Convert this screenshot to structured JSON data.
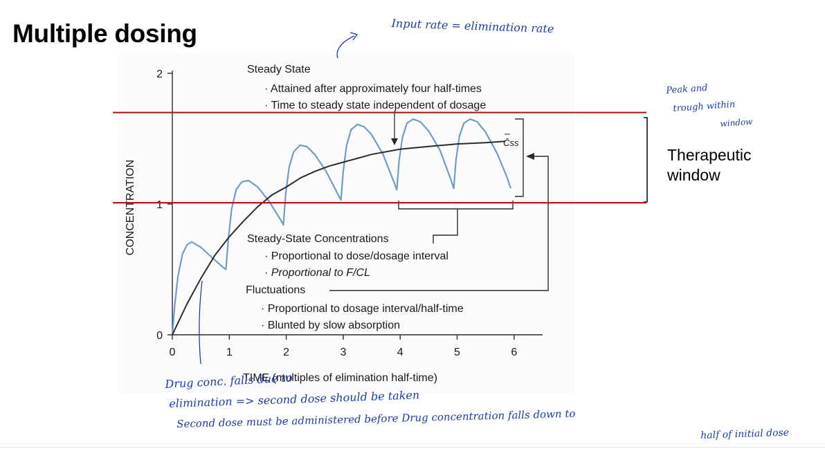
{
  "slide": {
    "title": "Multiple dosing",
    "window_label": [
      "Therapeutic",
      "window"
    ],
    "handwritten": {
      "top": "Input rate = elimination rate",
      "right": [
        "Peak and",
        "trough within",
        "window"
      ],
      "bottom": [
        "Drug conc. falls due to",
        "elimination => second dose should be taken",
        "Second dose must be administered before Drug concentration falls down to",
        "half of initial dose"
      ]
    }
  },
  "chart_data": {
    "type": "line",
    "xlabel": "TIME (multiples of elimination half-time)",
    "ylabel": "CONCENTRATION",
    "xlim": [
      0,
      6.5
    ],
    "ylim": [
      0,
      2
    ],
    "x_ticks": [
      "0",
      "1",
      "2",
      "3",
      "4",
      "5",
      "6"
    ],
    "y_ticks": [
      "0",
      "1",
      "2"
    ],
    "css_label": "C̄ss",
    "series": [
      {
        "type": "fluctuating",
        "color": "#6f9cc6",
        "values": [
          {
            "x": 0.0,
            "y": 0.0
          },
          {
            "x": 0.04,
            "y": 0.22
          },
          {
            "x": 0.1,
            "y": 0.45
          },
          {
            "x": 0.18,
            "y": 0.62
          },
          {
            "x": 0.26,
            "y": 0.69
          },
          {
            "x": 0.34,
            "y": 0.71
          },
          {
            "x": 0.5,
            "y": 0.67
          },
          {
            "x": 0.7,
            "y": 0.59
          },
          {
            "x": 0.88,
            "y": 0.52
          },
          {
            "x": 0.94,
            "y": 0.5
          },
          {
            "x": 0.98,
            "y": 0.72
          },
          {
            "x": 1.04,
            "y": 0.96
          },
          {
            "x": 1.12,
            "y": 1.11
          },
          {
            "x": 1.22,
            "y": 1.17
          },
          {
            "x": 1.34,
            "y": 1.18
          },
          {
            "x": 1.5,
            "y": 1.13
          },
          {
            "x": 1.7,
            "y": 1.02
          },
          {
            "x": 1.9,
            "y": 0.88
          },
          {
            "x": 1.95,
            "y": 0.84
          },
          {
            "x": 1.99,
            "y": 1.08
          },
          {
            "x": 2.05,
            "y": 1.28
          },
          {
            "x": 2.13,
            "y": 1.4
          },
          {
            "x": 2.24,
            "y": 1.45
          },
          {
            "x": 2.36,
            "y": 1.44
          },
          {
            "x": 2.5,
            "y": 1.38
          },
          {
            "x": 2.7,
            "y": 1.25
          },
          {
            "x": 2.9,
            "y": 1.08
          },
          {
            "x": 2.96,
            "y": 1.03
          },
          {
            "x": 3.0,
            "y": 1.25
          },
          {
            "x": 3.06,
            "y": 1.45
          },
          {
            "x": 3.14,
            "y": 1.57
          },
          {
            "x": 3.25,
            "y": 1.61
          },
          {
            "x": 3.37,
            "y": 1.59
          },
          {
            "x": 3.5,
            "y": 1.53
          },
          {
            "x": 3.7,
            "y": 1.38
          },
          {
            "x": 3.88,
            "y": 1.18
          },
          {
            "x": 3.94,
            "y": 1.11
          },
          {
            "x": 3.98,
            "y": 1.33
          },
          {
            "x": 4.04,
            "y": 1.51
          },
          {
            "x": 4.12,
            "y": 1.62
          },
          {
            "x": 4.23,
            "y": 1.65
          },
          {
            "x": 4.35,
            "y": 1.63
          },
          {
            "x": 4.5,
            "y": 1.56
          },
          {
            "x": 4.7,
            "y": 1.41
          },
          {
            "x": 4.88,
            "y": 1.2
          },
          {
            "x": 4.94,
            "y": 1.12
          },
          {
            "x": 4.98,
            "y": 1.34
          },
          {
            "x": 5.04,
            "y": 1.52
          },
          {
            "x": 5.12,
            "y": 1.62
          },
          {
            "x": 5.23,
            "y": 1.65
          },
          {
            "x": 5.35,
            "y": 1.63
          },
          {
            "x": 5.5,
            "y": 1.55
          },
          {
            "x": 5.7,
            "y": 1.39
          },
          {
            "x": 5.88,
            "y": 1.2
          },
          {
            "x": 5.94,
            "y": 1.12
          }
        ]
      },
      {
        "type": "average",
        "color": "#2b2b2b",
        "values": [
          {
            "x": 0.0,
            "y": 0.0
          },
          {
            "x": 0.25,
            "y": 0.23
          },
          {
            "x": 0.5,
            "y": 0.43
          },
          {
            "x": 0.75,
            "y": 0.61
          },
          {
            "x": 1.0,
            "y": 0.75
          },
          {
            "x": 1.25,
            "y": 0.87
          },
          {
            "x": 1.5,
            "y": 0.98
          },
          {
            "x": 1.75,
            "y": 1.07
          },
          {
            "x": 2.0,
            "y": 1.13
          },
          {
            "x": 2.25,
            "y": 1.2
          },
          {
            "x": 2.5,
            "y": 1.25
          },
          {
            "x": 2.75,
            "y": 1.29
          },
          {
            "x": 3.0,
            "y": 1.32
          },
          {
            "x": 3.5,
            "y": 1.38
          },
          {
            "x": 4.0,
            "y": 1.42
          },
          {
            "x": 4.5,
            "y": 1.44
          },
          {
            "x": 5.0,
            "y": 1.46
          },
          {
            "x": 5.5,
            "y": 1.47
          },
          {
            "x": 5.85,
            "y": 1.48
          }
        ]
      }
    ],
    "annotations": {
      "steady_state": {
        "heading": "Steady State",
        "items": [
          "· Attained after approximately four half-times",
          "· Time to steady state independent of dosage"
        ]
      },
      "ss_concentrations": {
        "heading": "Steady-State Concentrations",
        "items": [
          "· Proportional to dose/dosage interval",
          "· Proportional to F/CL"
        ]
      },
      "fluctuations": {
        "heading": "Fluctuations",
        "items": [
          "· Proportional to dosage interval/half-time",
          "· Blunted by slow absorption"
        ]
      }
    },
    "therapeutic_window_lines": {
      "color": "#b01c1c",
      "y_values": [
        1.7,
        1.01
      ]
    }
  }
}
